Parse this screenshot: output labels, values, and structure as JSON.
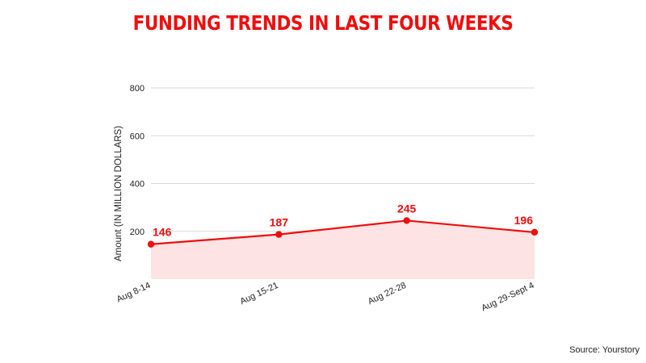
{
  "chart_data": {
    "type": "area",
    "title": "FUNDING TRENDS IN LAST FOUR WEEKS",
    "ylabel": "Amount (IN MILLION DOLLARS)",
    "xlabel": "",
    "categories": [
      "Aug 8-14",
      "Aug 15-21",
      "Aug 22-28",
      "Aug 29-Sept 4"
    ],
    "series": [
      {
        "values": [
          146,
          187,
          245,
          196
        ]
      }
    ],
    "yticks": [
      200,
      400,
      600,
      800
    ],
    "ylim": [
      0,
      800
    ],
    "grid": true,
    "data_labels": true
  },
  "source": "Source: Yourstory",
  "colors": {
    "accent": "#ef0d0d",
    "area_fill": "#fde3e3",
    "grid": "#d9d9d9",
    "text": "#222222"
  }
}
